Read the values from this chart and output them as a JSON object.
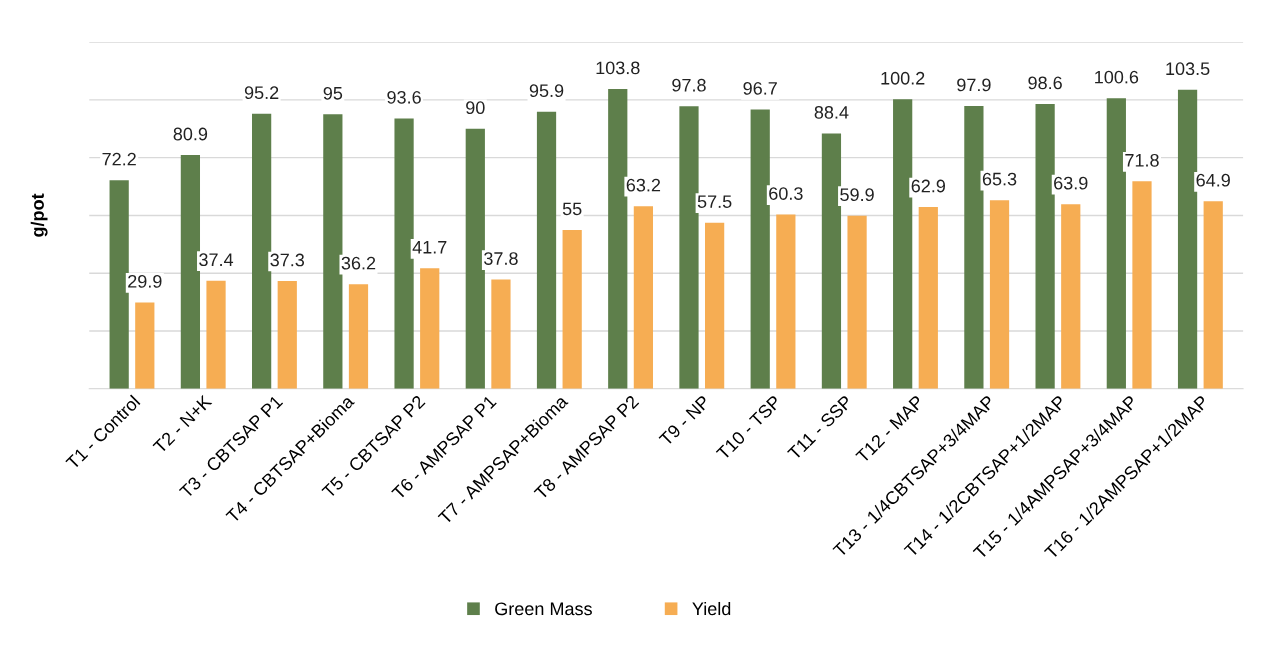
{
  "chart_data": {
    "type": "bar",
    "ylabel": "g/pot",
    "categories": [
      "T1 - Control",
      "T2 - N+K",
      "T3 - CBTSAP P1",
      "T4 - CBTSAP+Bioma",
      "T5 - CBTSAP P2",
      "T6 - AMPSAP P1",
      "T7 - AMPSAP+Bioma",
      "T8 - AMPSAP P2",
      "T9 - NP",
      "T10 - TSP",
      "T11 - SSP",
      "T12 - MAP",
      "T13 - 1/4CBTSAP+3/4MAP",
      "T14 - 1/2CBTSAP+1/2MAP",
      "T15 - 1/4AMPSAP+3/4MAP",
      "T16 - 1/2AMPSAP+1/2MAP"
    ],
    "series": [
      {
        "name": "Green Mass",
        "color": "#5e7f4b",
        "values": [
          72.2,
          80.9,
          95.2,
          95,
          93.6,
          90,
          95.9,
          103.8,
          97.8,
          96.7,
          88.4,
          100.2,
          97.9,
          98.6,
          100.6,
          103.5
        ]
      },
      {
        "name": "Yield",
        "color": "#f6ad53",
        "values": [
          29.9,
          37.4,
          37.3,
          36.2,
          41.7,
          37.8,
          55,
          63.2,
          57.5,
          60.3,
          59.9,
          62.9,
          65.3,
          63.9,
          71.8,
          64.9
        ]
      }
    ],
    "ylim": [
      0,
      120
    ],
    "yticks": [
      {
        "value": 0,
        "label": null
      },
      {
        "value": 20,
        "label": null
      },
      {
        "value": 40,
        "label": null
      },
      {
        "value": 60,
        "label": null
      },
      {
        "value": 80,
        "label": null
      },
      {
        "value": 100,
        "label": null
      },
      {
        "value": 120,
        "label": null
      }
    ],
    "tick_labels": "x",
    "grid": "y",
    "legend": "bottom",
    "data_labels": true
  }
}
